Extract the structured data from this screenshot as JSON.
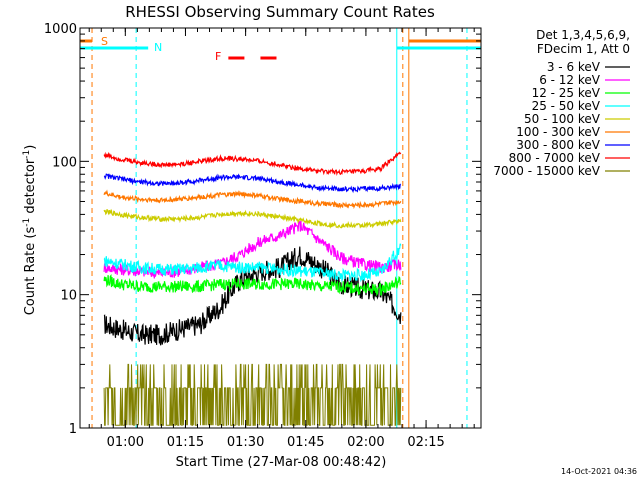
{
  "chart_data": {
    "type": "line",
    "title": "RHESSI Observing Summary Count Rates",
    "xlabel": "Start Time (27-Mar-08 00:48:42)",
    "ylabel_main": "Count Rate (s",
    "ylabel_sup1": "-1",
    "ylabel_mid": " detector",
    "ylabel_sup2": "-1",
    "ylabel_end": ")",
    "x_units": "minutes since 00:48:42 UT",
    "xlim": [
      0,
      100
    ],
    "ylim": [
      1,
      1000
    ],
    "yscale": "log",
    "x_ticks": [
      {
        "value": 11.3,
        "label": "01:00"
      },
      {
        "value": 26.3,
        "label": "01:15"
      },
      {
        "value": 41.3,
        "label": "01:30"
      },
      {
        "value": 56.3,
        "label": "01:45"
      },
      {
        "value": 71.3,
        "label": "02:00"
      },
      {
        "value": 86.3,
        "label": "02:15"
      }
    ],
    "y_ticks": [
      {
        "value": 1,
        "label": "1"
      },
      {
        "value": 10,
        "label": "10"
      },
      {
        "value": 100,
        "label": "100"
      },
      {
        "value": 1000,
        "label": "1000"
      }
    ],
    "legend_header": [
      "Det 1,3,4,5,6,9,",
      "FDecim 1, Att 0"
    ],
    "legend_position": "right",
    "series": [
      {
        "name": "3 - 6 keV",
        "color": "#000000",
        "x": [
          6,
          10,
          15,
          20,
          25,
          30,
          35,
          40,
          45,
          50,
          55,
          60,
          65,
          70,
          75,
          80
        ],
        "values": [
          6,
          5.5,
          5,
          5,
          5.5,
          6,
          8,
          13,
          15,
          16,
          20,
          16,
          12,
          11,
          10.5,
          7
        ]
      },
      {
        "name": "6 - 12 keV",
        "color": "#ff00ff",
        "x": [
          6,
          10,
          15,
          20,
          25,
          30,
          35,
          40,
          45,
          50,
          55,
          60,
          65,
          70,
          75,
          80
        ],
        "values": [
          16,
          15.5,
          15,
          14.5,
          15,
          16,
          17,
          20,
          25,
          28,
          33,
          25,
          19,
          17,
          16,
          17
        ]
      },
      {
        "name": "12 - 25 keV",
        "color": "#00ff00",
        "x": [
          6,
          10,
          15,
          20,
          25,
          30,
          35,
          40,
          45,
          50,
          55,
          60,
          65,
          70,
          75,
          80
        ],
        "values": [
          13,
          12,
          11.5,
          11.5,
          11.5,
          11.5,
          12,
          12,
          12,
          12,
          12,
          11.5,
          11.5,
          11,
          11,
          12.5
        ]
      },
      {
        "name": "25 - 50 keV",
        "color": "#00ffff",
        "x": [
          6,
          10,
          15,
          20,
          25,
          30,
          35,
          40,
          45,
          50,
          55,
          60,
          65,
          70,
          75,
          80
        ],
        "values": [
          18,
          17,
          16,
          15.5,
          15.5,
          16,
          16.5,
          16,
          16,
          15.5,
          15,
          14.5,
          14,
          14,
          14.5,
          22
        ]
      },
      {
        "name": "50 - 100 keV",
        "color": "#cccc00",
        "x": [
          6,
          10,
          15,
          20,
          25,
          30,
          35,
          40,
          45,
          50,
          55,
          60,
          65,
          70,
          75,
          80
        ],
        "values": [
          42,
          40,
          38,
          37,
          37,
          38,
          40,
          41,
          40,
          38,
          36,
          34,
          33,
          33,
          34,
          36
        ]
      },
      {
        "name": "100 - 300 keV",
        "color": "#ff7700",
        "x": [
          6,
          10,
          15,
          20,
          25,
          30,
          35,
          40,
          45,
          50,
          55,
          60,
          65,
          70,
          75,
          80
        ],
        "values": [
          58,
          54,
          52,
          51,
          52,
          54,
          56,
          57,
          55,
          52,
          50,
          48,
          47,
          47,
          48,
          50
        ]
      },
      {
        "name": "300 - 800 keV",
        "color": "#0000ff",
        "x": [
          6,
          10,
          15,
          20,
          25,
          30,
          35,
          40,
          45,
          50,
          55,
          60,
          65,
          70,
          75,
          80
        ],
        "values": [
          78,
          74,
          70,
          68,
          69,
          72,
          76,
          76,
          74,
          70,
          66,
          63,
          62,
          62,
          63,
          65
        ]
      },
      {
        "name": "800 - 7000 keV",
        "color": "#ff0000",
        "x": [
          6,
          10,
          15,
          20,
          25,
          30,
          35,
          40,
          45,
          50,
          55,
          60,
          65,
          70,
          75,
          80
        ],
        "values": [
          112,
          104,
          98,
          94,
          95,
          100,
          105,
          104,
          100,
          94,
          88,
          84,
          83,
          84,
          88,
          115
        ]
      },
      {
        "name": "7000 - 15000 keV",
        "color": "#808000",
        "x": [
          6,
          10,
          15,
          20,
          25,
          30,
          35,
          40,
          45,
          50,
          55,
          60,
          65,
          70,
          75,
          80
        ],
        "values": [
          2,
          2,
          2,
          2,
          2,
          2,
          2,
          2,
          2,
          2,
          2,
          2,
          2,
          2,
          2,
          2
        ]
      }
    ],
    "annotations": {
      "s_label": "S",
      "n_label": "N",
      "f_label": "F",
      "timestamp": "14-Oct-2021 04:36"
    },
    "vertical_lines": [
      {
        "x": 3.0,
        "color": "#ff7700",
        "style": "dashed"
      },
      {
        "x": 14.0,
        "color": "#00ffff",
        "style": "dashed"
      },
      {
        "x": 79.0,
        "color": "#00ffff",
        "style": "solid"
      },
      {
        "x": 80.5,
        "color": "#ff7700",
        "style": "dashed"
      },
      {
        "x": 82.0,
        "color": "#ff7700",
        "style": "solid"
      },
      {
        "x": 96.5,
        "color": "#00ffff",
        "style": "dashed"
      }
    ]
  }
}
